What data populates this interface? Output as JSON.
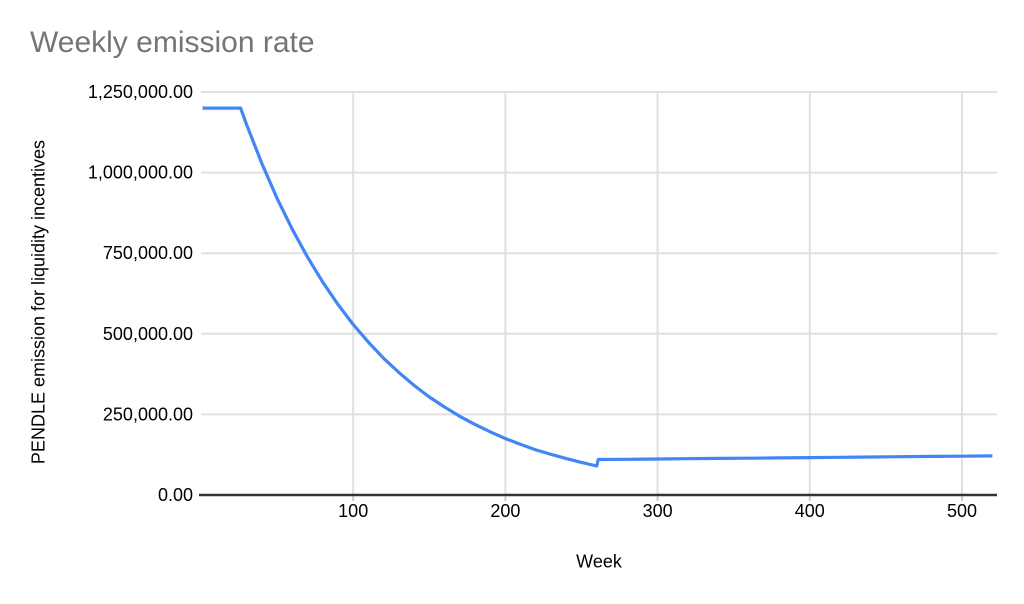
{
  "chart": {
    "background_color": "#ffffff",
    "title_color": "#757575",
    "label_color": "#000000",
    "gridline_color": "#e0e0e0",
    "axis_line_color": "#333333",
    "tick_stub_color": "#cccccc",
    "series_color": "#4285f4"
  },
  "chart_data": {
    "type": "line",
    "title": "Weekly emission rate",
    "xlabel": "Week",
    "ylabel": "PENDLE emission for liquidity incentives",
    "xlim": [
      0,
      523
    ],
    "ylim": [
      0,
      1250000
    ],
    "grid": true,
    "legend": false,
    "x_ticks": [
      {
        "value": 100,
        "label": "100"
      },
      {
        "value": 200,
        "label": "200"
      },
      {
        "value": 300,
        "label": "300"
      },
      {
        "value": 400,
        "label": "400"
      },
      {
        "value": 500,
        "label": "500"
      }
    ],
    "y_ticks": [
      {
        "value": 0,
        "label": "0.00"
      },
      {
        "value": 250000,
        "label": "250,000.00"
      },
      {
        "value": 500000,
        "label": "500,000.00"
      },
      {
        "value": 750000,
        "label": "750,000.00"
      },
      {
        "value": 1000000,
        "label": "1,000,000.00"
      },
      {
        "value": 1250000,
        "label": "1,250,000.00"
      }
    ],
    "series": [
      {
        "name": "Weekly emission rate",
        "color": "#4285f4",
        "points": [
          [
            1,
            1200000
          ],
          [
            26,
            1200000
          ],
          [
            30,
            1148000
          ],
          [
            40,
            1028000
          ],
          [
            50,
            920000
          ],
          [
            60,
            824000
          ],
          [
            70,
            738000
          ],
          [
            80,
            660000
          ],
          [
            90,
            591000
          ],
          [
            100,
            529000
          ],
          [
            110,
            474000
          ],
          [
            120,
            424000
          ],
          [
            130,
            380000
          ],
          [
            140,
            340000
          ],
          [
            150,
            304000
          ],
          [
            160,
            273000
          ],
          [
            170,
            244000
          ],
          [
            180,
            219000
          ],
          [
            190,
            196000
          ],
          [
            200,
            175000
          ],
          [
            210,
            157000
          ],
          [
            220,
            140000
          ],
          [
            230,
            126000
          ],
          [
            240,
            113000
          ],
          [
            250,
            101000
          ],
          [
            260,
            90000
          ],
          [
            261,
            110000
          ],
          [
            280,
            110800
          ],
          [
            300,
            111700
          ],
          [
            320,
            112500
          ],
          [
            340,
            113400
          ],
          [
            360,
            114200
          ],
          [
            380,
            115100
          ],
          [
            400,
            116000
          ],
          [
            420,
            116900
          ],
          [
            440,
            117800
          ],
          [
            460,
            118700
          ],
          [
            480,
            119600
          ],
          [
            500,
            120500
          ],
          [
            520,
            121400
          ]
        ]
      }
    ]
  }
}
